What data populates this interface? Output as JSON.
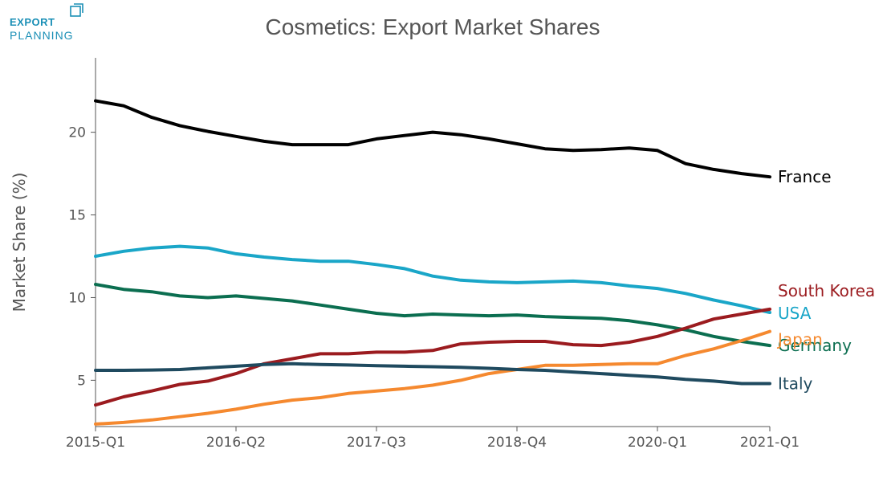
{
  "logo": {
    "line1": "EXPORT",
    "line2": "PLANNING",
    "color": "#1a8fb6"
  },
  "chart_data": {
    "type": "line",
    "title": "Cosmetics: Export Market Shares",
    "xlabel": "",
    "ylabel": "Market Share (%)",
    "ylim": [
      2.2,
      24.5
    ],
    "yticks": [
      5,
      10,
      15,
      20
    ],
    "x": [
      "2015-Q1",
      "2015-Q2",
      "2015-Q3",
      "2015-Q4",
      "2016-Q1",
      "2016-Q2",
      "2016-Q3",
      "2016-Q4",
      "2017-Q1",
      "2017-Q2",
      "2017-Q3",
      "2017-Q4",
      "2018-Q1",
      "2018-Q2",
      "2018-Q3",
      "2018-Q4",
      "2019-Q1",
      "2019-Q2",
      "2019-Q3",
      "2019-Q4",
      "2020-Q1",
      "2020-Q2",
      "2020-Q3",
      "2020-Q4",
      "2021-Q1"
    ],
    "xticks": [
      "2015-Q1",
      "2016-Q2",
      "2017-Q3",
      "2018-Q4",
      "2020-Q1",
      "2021-Q1"
    ],
    "grid": false,
    "legend": "direct labels at line ends",
    "series": [
      {
        "name": "France",
        "color": "#000000",
        "values": [
          21.9,
          21.6,
          20.9,
          20.4,
          20.05,
          19.75,
          19.45,
          19.25,
          19.25,
          19.25,
          19.6,
          19.8,
          20.0,
          19.85,
          19.6,
          19.3,
          19.0,
          18.9,
          18.95,
          19.05,
          18.9,
          18.1,
          17.75,
          17.5,
          17.3
        ]
      },
      {
        "name": "USA",
        "color": "#1aa6c8",
        "values": [
          12.5,
          12.8,
          13.0,
          13.1,
          13.0,
          12.65,
          12.45,
          12.3,
          12.2,
          12.2,
          12.0,
          11.75,
          11.3,
          11.05,
          10.95,
          10.9,
          10.95,
          11.0,
          10.9,
          10.7,
          10.55,
          10.25,
          9.85,
          9.5,
          9.1
        ]
      },
      {
        "name": "Germany",
        "color": "#0b6e50",
        "values": [
          10.8,
          10.5,
          10.35,
          10.1,
          10.0,
          10.1,
          9.95,
          9.8,
          9.55,
          9.3,
          9.05,
          8.9,
          9.0,
          8.95,
          8.9,
          8.95,
          8.85,
          8.8,
          8.75,
          8.6,
          8.35,
          8.05,
          7.65,
          7.35,
          7.1
        ]
      },
      {
        "name": "South Korea",
        "color": "#9b1b1f",
        "values": [
          3.5,
          4.0,
          4.35,
          4.75,
          4.95,
          5.4,
          6.0,
          6.3,
          6.6,
          6.6,
          6.7,
          6.7,
          6.8,
          7.2,
          7.3,
          7.35,
          7.35,
          7.15,
          7.1,
          7.3,
          7.65,
          8.15,
          8.7,
          9.0,
          9.3
        ]
      },
      {
        "name": "Japan",
        "color": "#f5892f",
        "values": [
          2.35,
          2.45,
          2.6,
          2.8,
          3.0,
          3.25,
          3.55,
          3.8,
          3.95,
          4.2,
          4.35,
          4.5,
          4.7,
          5.0,
          5.4,
          5.65,
          5.9,
          5.9,
          5.95,
          6.0,
          6.0,
          6.5,
          6.9,
          7.4,
          7.95
        ]
      },
      {
        "name": "Italy",
        "color": "#1f4a5f",
        "values": [
          5.6,
          5.6,
          5.62,
          5.65,
          5.75,
          5.85,
          5.95,
          6.0,
          5.95,
          5.92,
          5.88,
          5.85,
          5.82,
          5.78,
          5.72,
          5.65,
          5.6,
          5.5,
          5.4,
          5.3,
          5.2,
          5.05,
          4.95,
          4.8,
          4.8
        ]
      }
    ]
  }
}
